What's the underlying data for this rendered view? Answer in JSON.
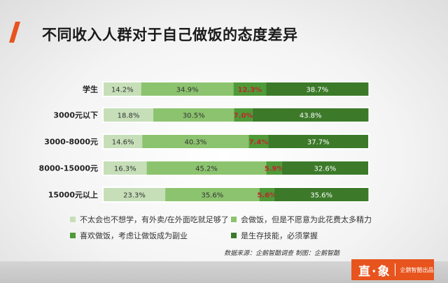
{
  "title": "不同收入人群对于自己做饭的态度差异",
  "colors": {
    "accent": "#e8541e",
    "series": [
      "#c6dfb8",
      "#8cc36e",
      "#4f9a38",
      "#3c7a2a"
    ],
    "highlight_text": "#c0262c"
  },
  "chart_data": {
    "type": "bar",
    "stacked": true,
    "orientation": "horizontal",
    "categories": [
      "学生",
      "3000元以下",
      "3000-8000元",
      "8000-15000元",
      "15000元以上"
    ],
    "series": [
      {
        "name": "不太会也不想学，有外卖/在外面吃就足够了",
        "values": [
          14.2,
          18.8,
          14.6,
          16.3,
          23.3
        ]
      },
      {
        "name": "会做饭，但是不愿意为此花费太多精力",
        "values": [
          34.9,
          30.5,
          40.3,
          45.2,
          35.6
        ]
      },
      {
        "name": "喜欢做饭，考虑让做饭成为副业",
        "values": [
          12.3,
          7.0,
          7.4,
          5.9,
          5.6
        ]
      },
      {
        "name": "是生存技能，必须掌握",
        "values": [
          38.7,
          43.8,
          37.7,
          32.6,
          35.6
        ]
      }
    ],
    "data_labels": [
      [
        "14.2%",
        "34.9%",
        "12.3%",
        "38.7%"
      ],
      [
        "18.8%",
        "30.5%",
        "7.0%",
        "43.8%"
      ],
      [
        "14.6%",
        "40.3%",
        "7.4%",
        "37.7%"
      ],
      [
        "16.3%",
        "45.2%",
        "5.9%",
        "32.6%"
      ],
      [
        "23.3%",
        "35.6%",
        "5.6%",
        "35.6%"
      ]
    ],
    "xlim": [
      0,
      100
    ],
    "grid": false,
    "legend_position": "bottom"
  },
  "legend": [
    "不太会也不想学，有外卖/在外面吃就足够了",
    "会做饭，但是不愿意为此花费太多精力",
    "喜欢做饭，考虑让做饭成为副业",
    "是生存技能，必须掌握"
  ],
  "source": "数据来源：企鹅智酷调查  制图：企鹅智酷",
  "brand": {
    "logo": "直·象",
    "sub": "企鹅智酷出品"
  }
}
